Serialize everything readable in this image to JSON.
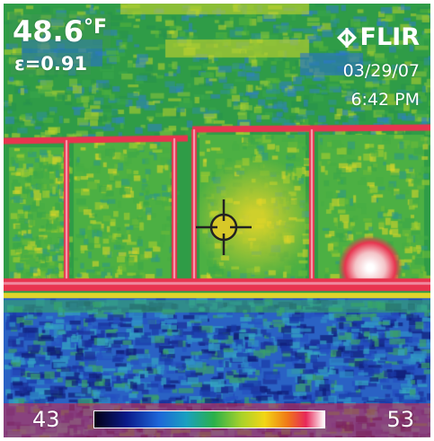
{
  "readout": {
    "temperature": "48.6",
    "unit": "°F",
    "emissivity": "ε=0.91"
  },
  "brand": {
    "logo_text": "FLIR",
    "logo_icon": "flir-diamond-icon"
  },
  "timestamp": {
    "date": "03/29/07",
    "time": "6:42 PM"
  },
  "scale": {
    "min": "43",
    "max": "53",
    "palette": "iron-rainbow"
  },
  "spot_meter": {
    "icon": "crosshair-icon",
    "color": "#d8c828"
  },
  "colors": {
    "window_frame_hot": "#e8344f",
    "wall": "#2f9c47",
    "ground_cold": "#1b3aa0"
  }
}
